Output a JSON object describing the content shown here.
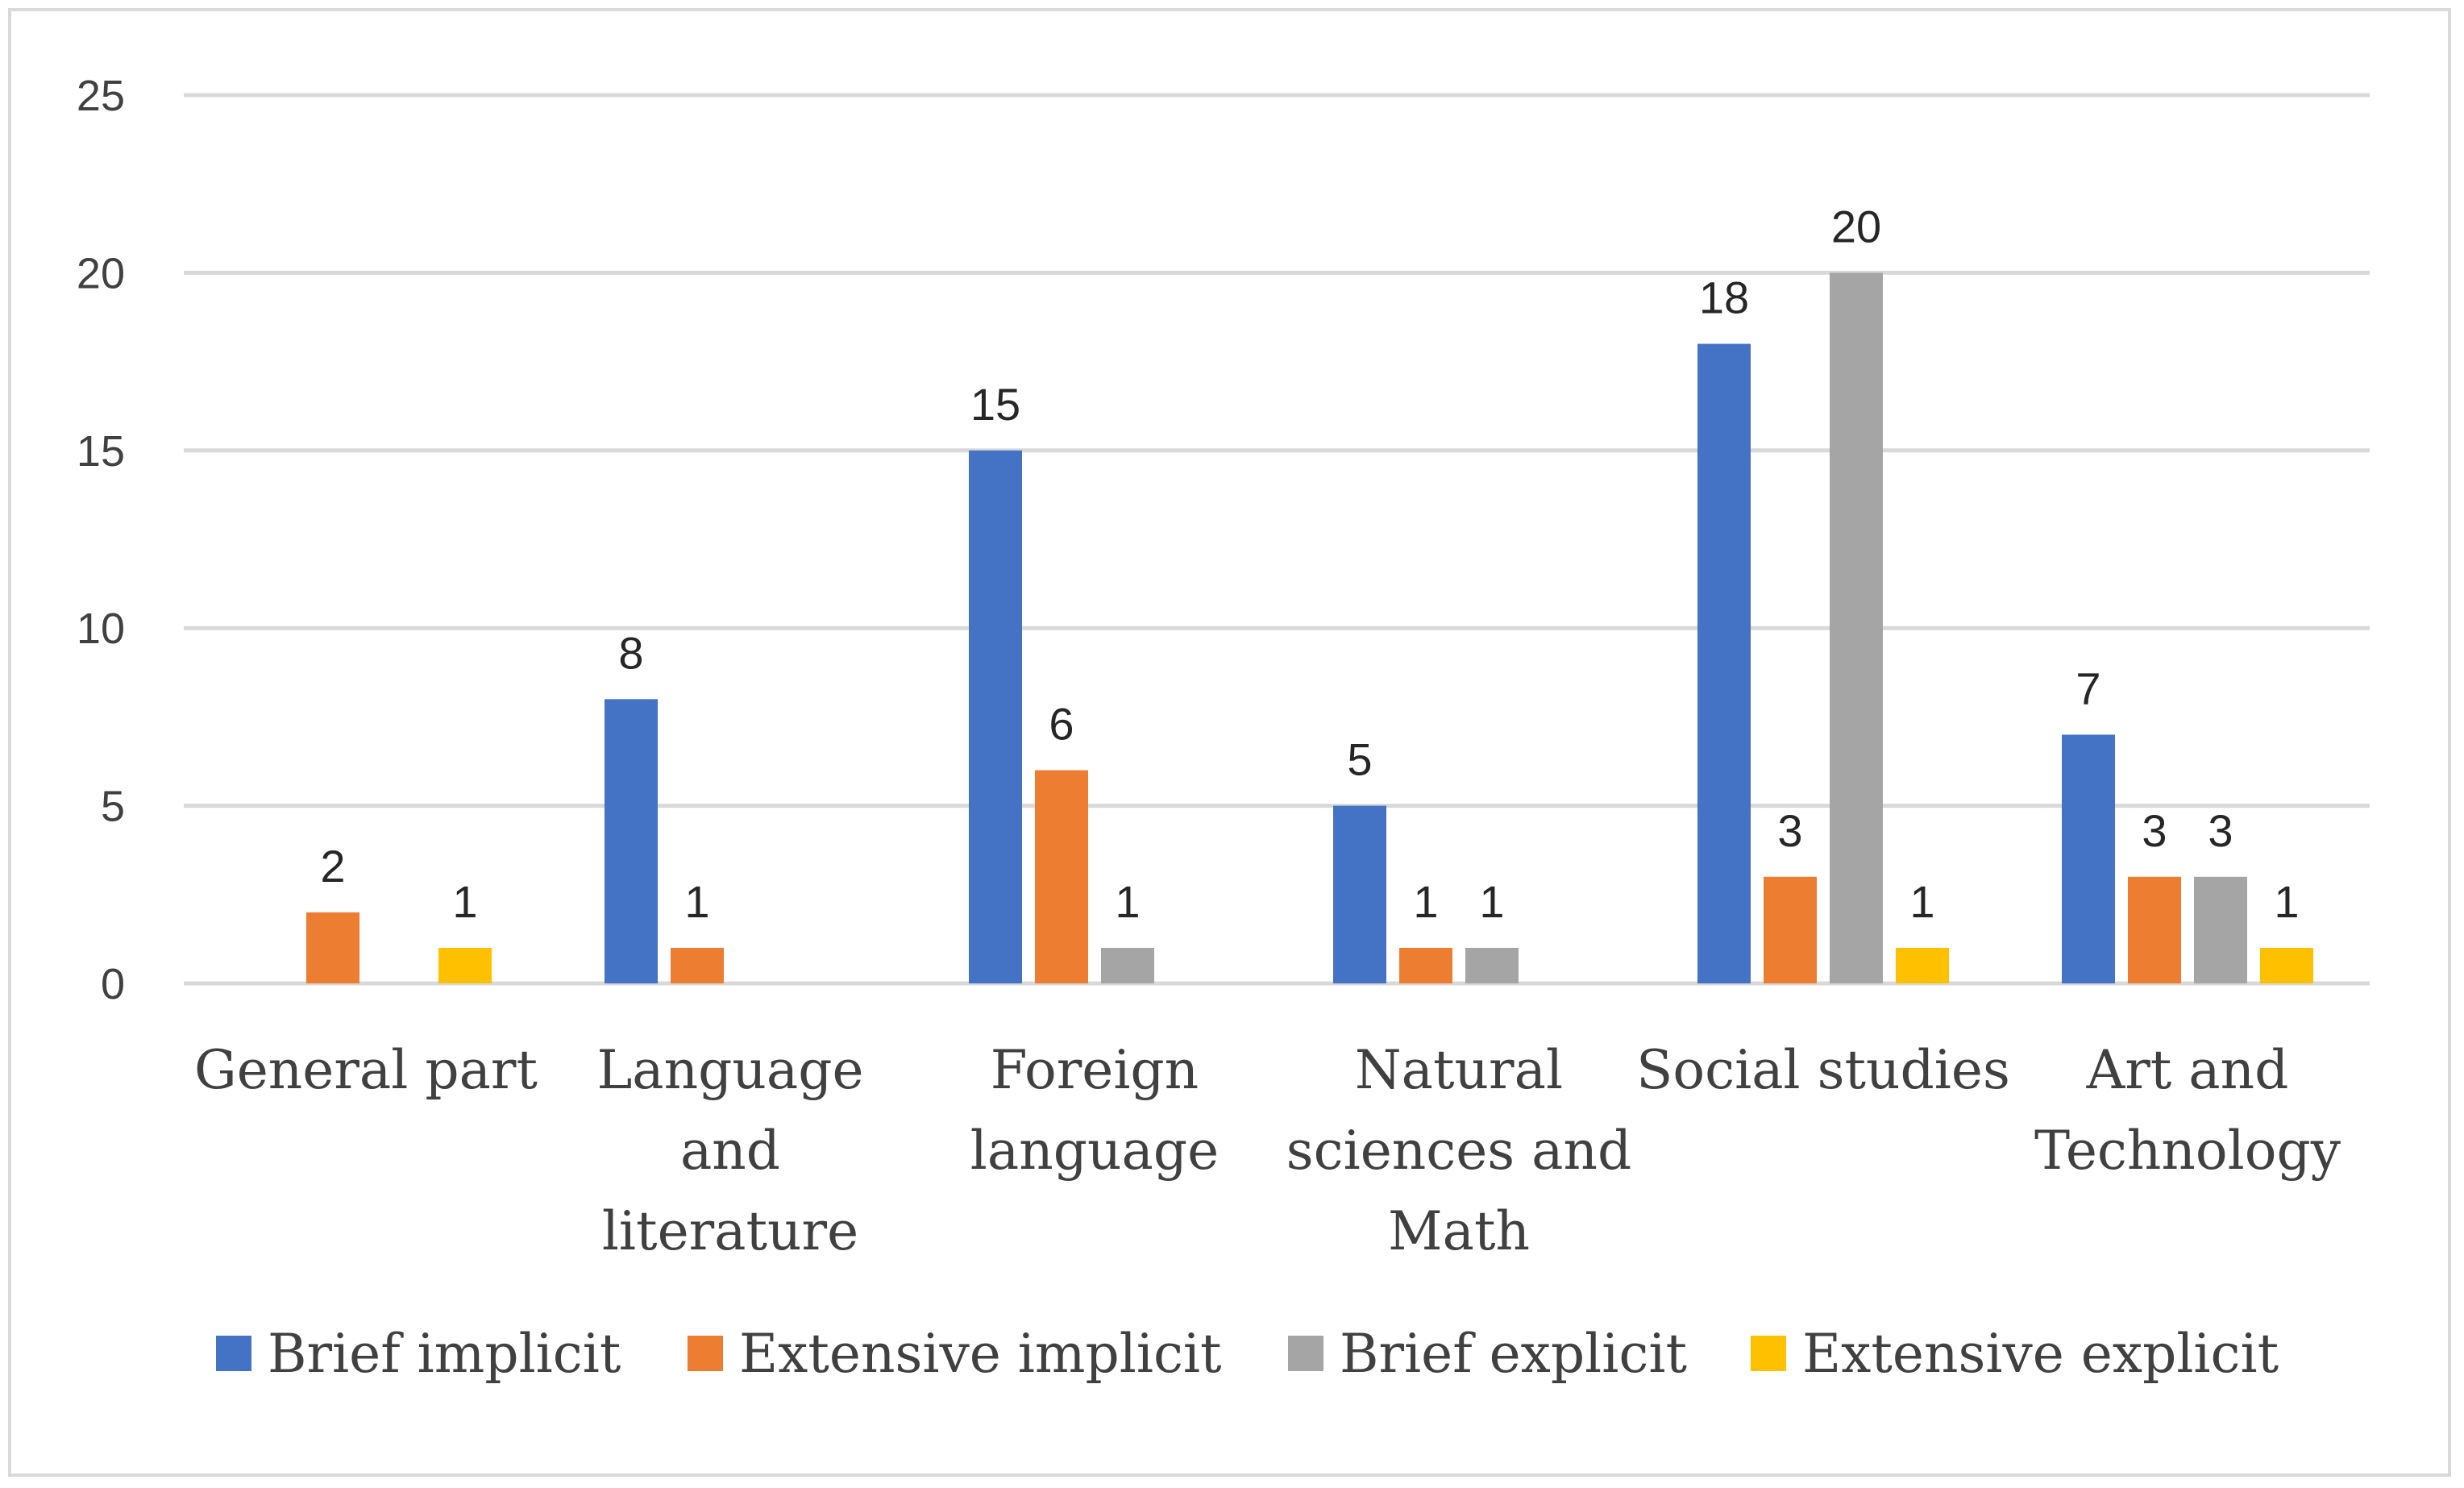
{
  "chart_data": {
    "type": "bar",
    "title": "",
    "xlabel": "",
    "ylabel": "",
    "ylim": [
      0,
      25
    ],
    "yticks": [
      0,
      5,
      10,
      15,
      20,
      25
    ],
    "grid": true,
    "legend_position": "bottom",
    "categories": [
      [
        "General part"
      ],
      [
        "Language",
        "and",
        "literature"
      ],
      [
        "Foreign",
        "language"
      ],
      [
        "Natural",
        "sciences and",
        "Math"
      ],
      [
        "Social studies"
      ],
      [
        "Art and",
        "Technology"
      ]
    ],
    "series": [
      {
        "name": "Brief implicit",
        "color": "#4472c4",
        "values": [
          null,
          8,
          15,
          5,
          18,
          7
        ]
      },
      {
        "name": "Extensive implicit",
        "color": "#ed7d31",
        "values": [
          2,
          1,
          6,
          1,
          3,
          3
        ]
      },
      {
        "name": "Brief explicit",
        "color": "#a5a5a5",
        "values": [
          null,
          null,
          1,
          1,
          20,
          3
        ]
      },
      {
        "name": "Extensive explicit",
        "color": "#ffc000",
        "values": [
          1,
          null,
          null,
          null,
          1,
          1
        ]
      }
    ]
  }
}
